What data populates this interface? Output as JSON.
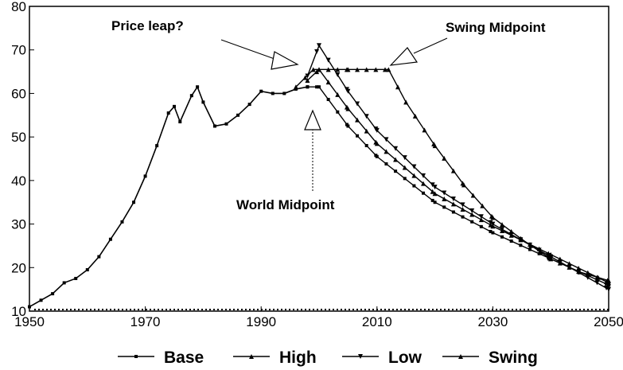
{
  "chart_data": {
    "type": "line",
    "title": "",
    "xlabel": "",
    "ylabel": "",
    "xlim": [
      1950,
      2050
    ],
    "ylim": [
      10,
      80
    ],
    "xticks": [
      1950,
      1970,
      1990,
      2010,
      2030,
      2050
    ],
    "yticks": [
      10,
      20,
      30,
      40,
      50,
      60,
      70,
      80
    ],
    "grid": false,
    "legend_position": "bottom",
    "historical": {
      "x": [
        1950,
        1952,
        1954,
        1956,
        1958,
        1960,
        1962,
        1964,
        1966,
        1968,
        1970,
        1972,
        1974,
        1975,
        1976,
        1978,
        1979,
        1980,
        1982,
        1984,
        1986,
        1988,
        1990,
        1992,
        1994,
        1996,
        1998
      ],
      "y": [
        11,
        12.5,
        14,
        16.5,
        17.5,
        19.5,
        22.5,
        26.5,
        30.5,
        35,
        41,
        48,
        55.5,
        57,
        53.5,
        59.5,
        61.5,
        58,
        52.5,
        53,
        55,
        57.5,
        60.5,
        60,
        60,
        61,
        61.5
      ]
    },
    "series": [
      {
        "name": "Base",
        "marker": "square",
        "x": [
          1998,
          2000,
          2005,
          2010,
          2020,
          2030,
          2040,
          2050
        ],
        "y": [
          61.5,
          61.5,
          52.5,
          45.5,
          35,
          28,
          22,
          16
        ]
      },
      {
        "name": "High",
        "marker": "triangle-up",
        "x": [
          1998,
          2000,
          2005,
          2010,
          2020,
          2030,
          2040,
          2050
        ],
        "y": [
          63,
          65.5,
          56.5,
          48.5,
          37,
          29.5,
          23,
          16.5
        ]
      },
      {
        "name": "Low",
        "marker": "triangle-down",
        "x": [
          1998,
          2000,
          2005,
          2010,
          2020,
          2030,
          2040,
          2050
        ],
        "y": [
          64,
          71,
          60.5,
          51.5,
          38.5,
          30,
          22.5,
          15
        ]
      },
      {
        "name": "Swing",
        "marker": "triangle-up",
        "x": [
          1996,
          1999,
          2000,
          2005,
          2012,
          2015,
          2020,
          2025,
          2030,
          2035,
          2040,
          2045,
          2050
        ],
        "y": [
          61.5,
          65.5,
          65.5,
          65.5,
          65.5,
          58,
          48,
          39,
          31.5,
          26.5,
          22,
          19,
          17
        ]
      }
    ],
    "annotations": [
      {
        "text": "Price leap?",
        "target": {
          "x": 1998,
          "y": 65
        }
      },
      {
        "text": "Swing Midpoint",
        "target": {
          "x": 2011,
          "y": 66
        }
      },
      {
        "text": "World Midpoint",
        "target": {
          "x": 1999,
          "y": 62
        }
      }
    ]
  }
}
